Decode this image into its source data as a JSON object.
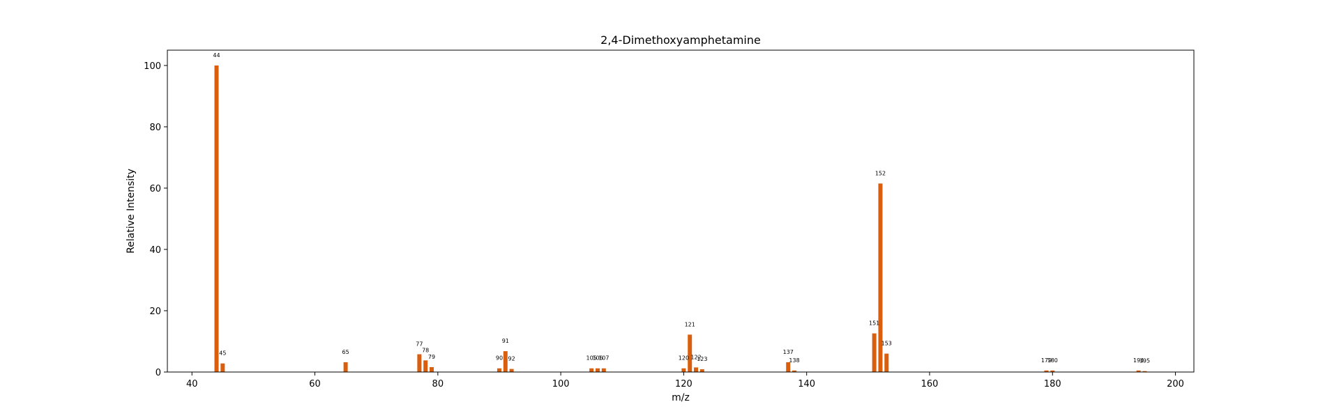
{
  "chart_data": {
    "type": "bar",
    "title": "2,4-Dimethoxyamphetamine",
    "xlabel": "m/z",
    "ylabel": "Relative Intensity",
    "xlim": [
      36,
      203
    ],
    "ylim": [
      0,
      105
    ],
    "xticks": [
      40,
      60,
      80,
      100,
      120,
      140,
      160,
      180,
      200
    ],
    "yticks": [
      0,
      20,
      40,
      60,
      80,
      100
    ],
    "grid": false,
    "bar_color": "#d95f0e",
    "series": [
      {
        "peaks": [
          {
            "mz": 44,
            "intensity": 100,
            "label": "44"
          },
          {
            "mz": 45,
            "intensity": 2.8,
            "label": "45"
          },
          {
            "mz": 65,
            "intensity": 3.2,
            "label": "65"
          },
          {
            "mz": 77,
            "intensity": 5.8,
            "label": "77"
          },
          {
            "mz": 78,
            "intensity": 3.8,
            "label": "78"
          },
          {
            "mz": 79,
            "intensity": 1.6,
            "label": "79"
          },
          {
            "mz": 90,
            "intensity": 1.2,
            "label": "90"
          },
          {
            "mz": 91,
            "intensity": 6.8,
            "label": "91"
          },
          {
            "mz": 92,
            "intensity": 1.0,
            "label": "92"
          },
          {
            "mz": 105,
            "intensity": 1.2,
            "label": "105"
          },
          {
            "mz": 106,
            "intensity": 1.2,
            "label": "106"
          },
          {
            "mz": 107,
            "intensity": 1.2,
            "label": "107"
          },
          {
            "mz": 120,
            "intensity": 1.2,
            "label": "120"
          },
          {
            "mz": 121,
            "intensity": 12.2,
            "label": "121"
          },
          {
            "mz": 122,
            "intensity": 1.5,
            "label": "122"
          },
          {
            "mz": 123,
            "intensity": 0.9,
            "label": "123"
          },
          {
            "mz": 137,
            "intensity": 3.2,
            "label": "137"
          },
          {
            "mz": 138,
            "intensity": 0.5,
            "label": "138"
          },
          {
            "mz": 151,
            "intensity": 12.6,
            "label": "151"
          },
          {
            "mz": 152,
            "intensity": 61.5,
            "label": "152"
          },
          {
            "mz": 153,
            "intensity": 6.0,
            "label": "153"
          },
          {
            "mz": 179,
            "intensity": 0.5,
            "label": "179"
          },
          {
            "mz": 180,
            "intensity": 0.5,
            "label": "180"
          },
          {
            "mz": 194,
            "intensity": 0.5,
            "label": "194"
          },
          {
            "mz": 195,
            "intensity": 0.3,
            "label": "195"
          }
        ]
      }
    ]
  }
}
